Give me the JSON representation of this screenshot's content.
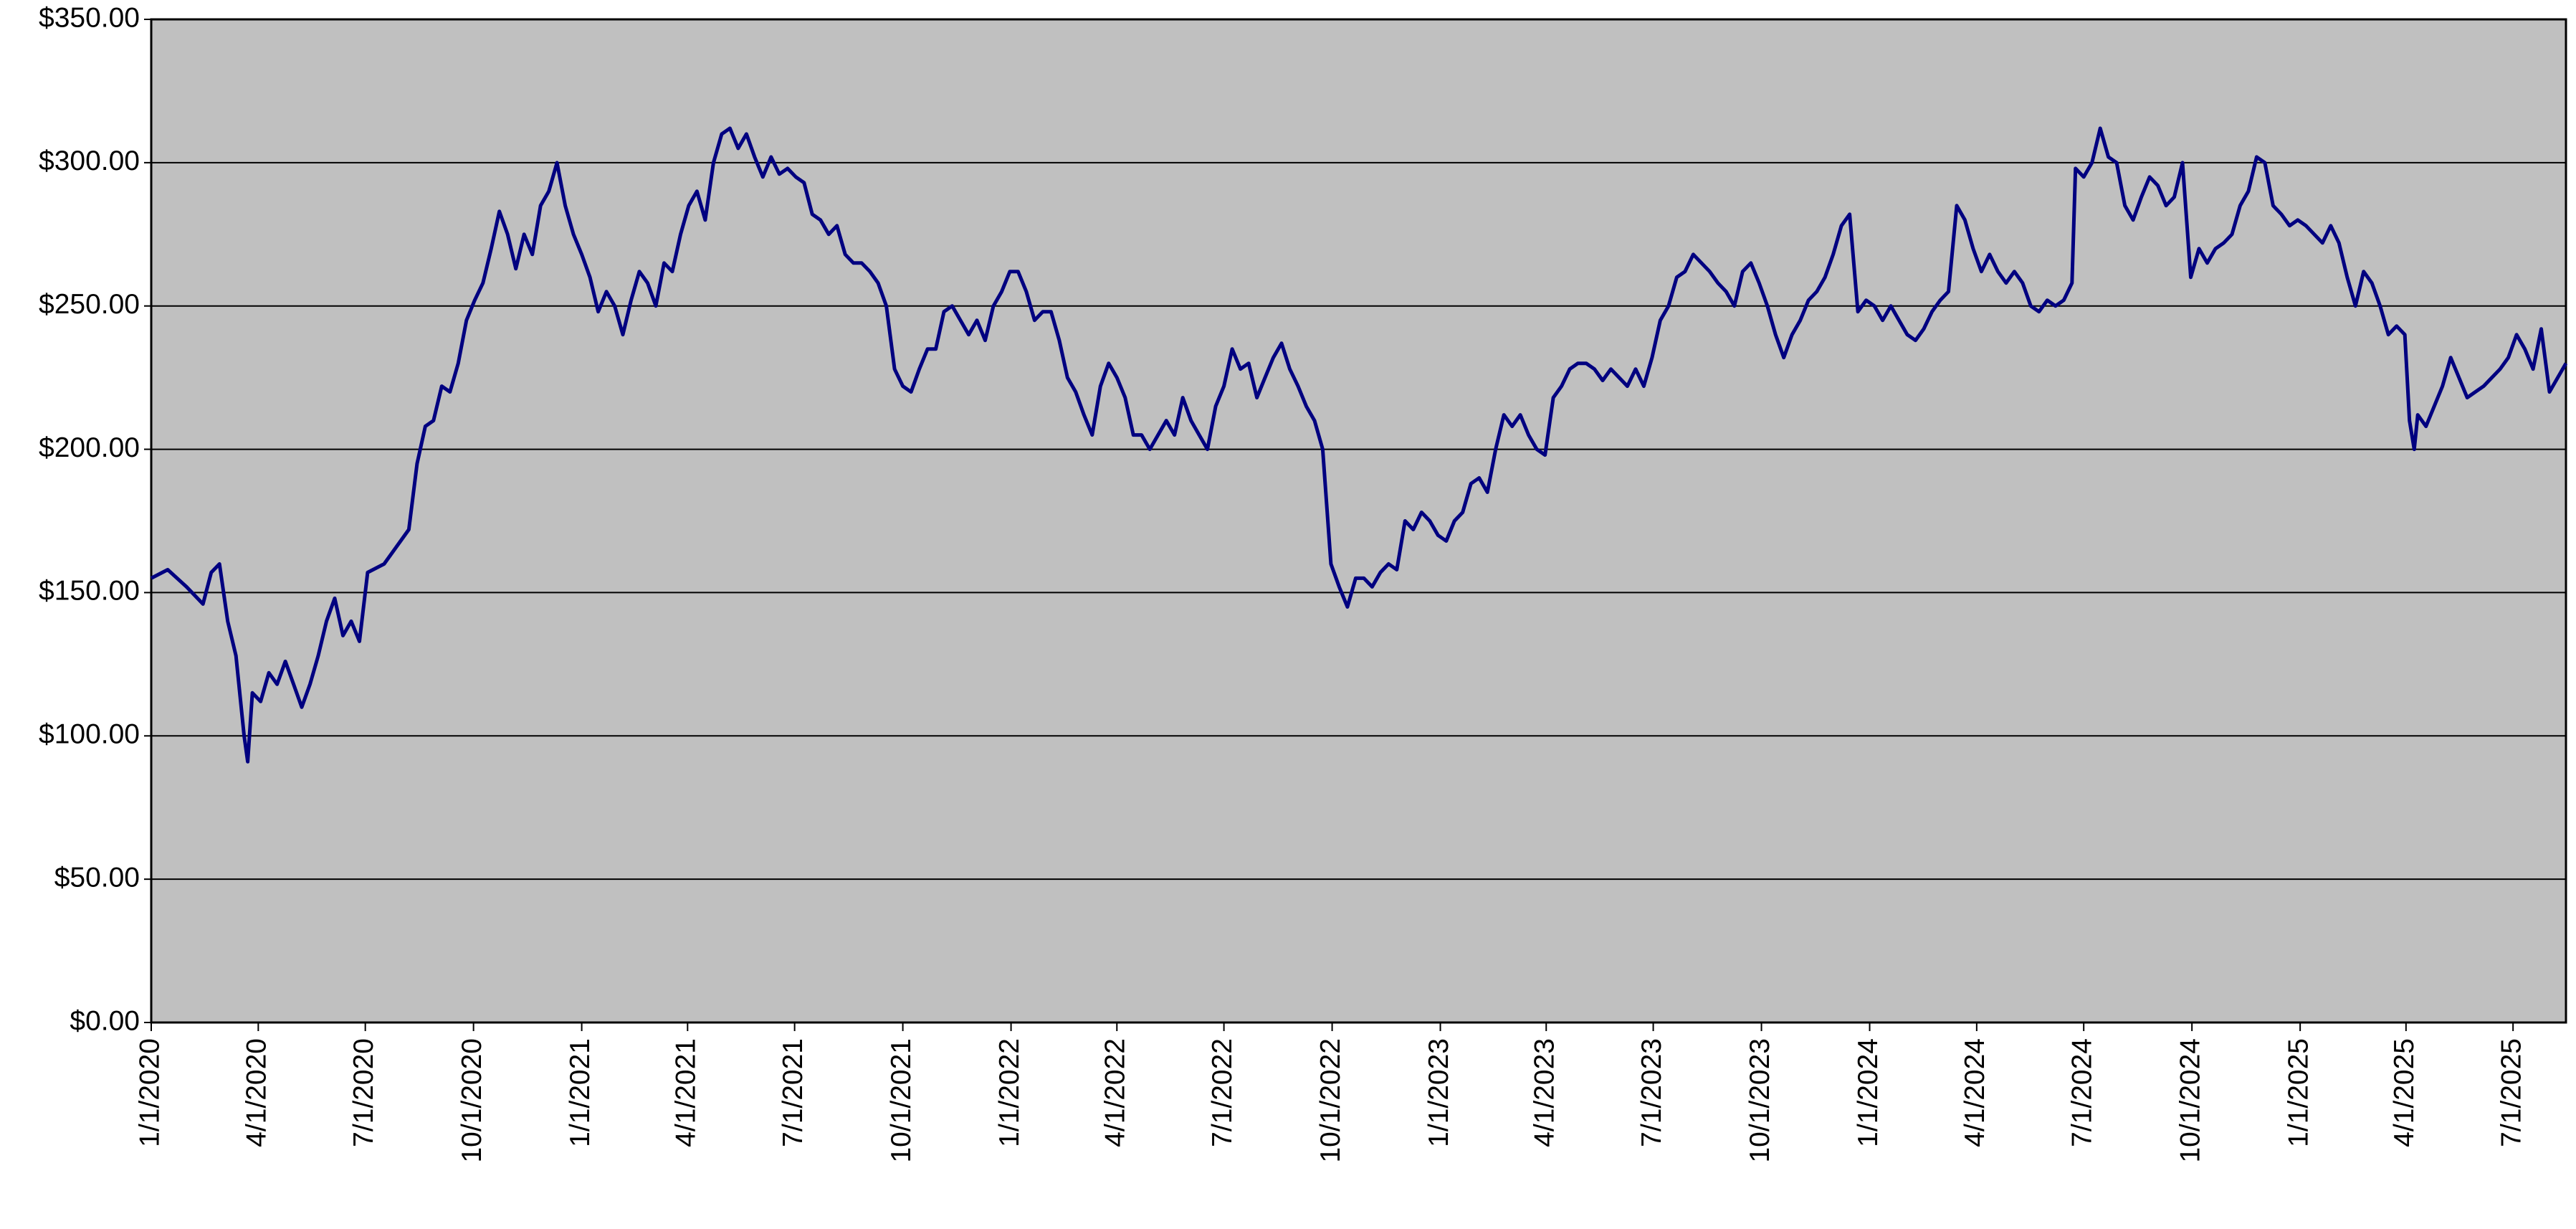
{
  "chart_data": {
    "type": "line",
    "color": "#000080",
    "background": "#c0c0c0",
    "grid": true,
    "ylim": [
      0,
      350
    ],
    "yticks": [
      {
        "value": 0,
        "label": "$0.00"
      },
      {
        "value": 50,
        "label": "$50.00"
      },
      {
        "value": 100,
        "label": "$100.00"
      },
      {
        "value": 150,
        "label": "$150.00"
      },
      {
        "value": 200,
        "label": "$200.00"
      },
      {
        "value": 250,
        "label": "$250.00"
      },
      {
        "value": 300,
        "label": "$300.00"
      },
      {
        "value": 350,
        "label": "$350.00"
      }
    ],
    "xlim": [
      "1/1/2020",
      "8/15/2025"
    ],
    "xticks": [
      "1/1/2020",
      "4/1/2020",
      "7/1/2020",
      "10/1/2020",
      "1/1/2021",
      "4/1/2021",
      "7/1/2021",
      "10/1/2021",
      "1/1/2022",
      "4/1/2022",
      "7/1/2022",
      "10/1/2022",
      "1/1/2023",
      "4/1/2023",
      "7/1/2023",
      "10/1/2023",
      "1/1/2024",
      "4/1/2024",
      "7/1/2024",
      "10/1/2024",
      "1/1/2025",
      "4/1/2025",
      "7/1/2025"
    ],
    "x": [
      "1/1/2020",
      "1/15/2020",
      "1/31/2020",
      "2/14/2020",
      "2/21/2020",
      "2/28/2020",
      "3/6/2020",
      "3/13/2020",
      "3/20/2020",
      "3/23/2020",
      "3/27/2020",
      "4/3/2020",
      "4/10/2020",
      "4/17/2020",
      "4/24/2020",
      "5/1/2020",
      "5/8/2020",
      "5/15/2020",
      "5/22/2020",
      "5/29/2020",
      "6/5/2020",
      "6/12/2020",
      "6/19/2020",
      "6/26/2020",
      "7/3/2020",
      "7/17/2020",
      "7/31/2020",
      "8/7/2020",
      "8/14/2020",
      "8/21/2020",
      "8/28/2020",
      "9/4/2020",
      "9/11/2020",
      "9/18/2020",
      "9/25/2020",
      "10/2/2020",
      "10/9/2020",
      "10/16/2020",
      "10/23/2020",
      "10/30/2020",
      "11/6/2020",
      "11/13/2020",
      "11/20/2020",
      "11/27/2020",
      "12/4/2020",
      "12/11/2020",
      "12/18/2020",
      "12/25/2020",
      "1/1/2021",
      "1/8/2021",
      "1/15/2021",
      "1/22/2021",
      "1/29/2021",
      "2/5/2021",
      "2/12/2021",
      "2/19/2021",
      "2/26/2021",
      "3/5/2021",
      "3/12/2021",
      "3/19/2021",
      "3/26/2021",
      "4/2/2021",
      "4/9/2021",
      "4/16/2021",
      "4/23/2021",
      "4/30/2021",
      "5/7/2021",
      "5/14/2021",
      "5/21/2021",
      "5/28/2021",
      "6/4/2021",
      "6/11/2021",
      "6/18/2021",
      "6/25/2021",
      "7/2/2021",
      "7/9/2021",
      "7/16/2021",
      "7/23/2021",
      "7/30/2021",
      "8/6/2021",
      "8/13/2021",
      "8/20/2021",
      "8/27/2021",
      "9/3/2021",
      "9/10/2021",
      "9/17/2021",
      "9/24/2021",
      "10/1/2021",
      "10/8/2021",
      "10/15/2021",
      "10/22/2021",
      "10/29/2021",
      "11/5/2021",
      "11/12/2021",
      "11/19/2021",
      "11/26/2021",
      "12/3/2021",
      "12/10/2021",
      "12/17/2021",
      "12/24/2021",
      "12/31/2021",
      "1/7/2022",
      "1/14/2022",
      "1/21/2022",
      "1/28/2022",
      "2/4/2022",
      "2/11/2022",
      "2/18/2022",
      "2/25/2022",
      "3/4/2022",
      "3/11/2022",
      "3/18/2022",
      "3/25/2022",
      "4/1/2022",
      "4/8/2022",
      "4/15/2022",
      "4/22/2022",
      "4/29/2022",
      "5/6/2022",
      "5/13/2022",
      "5/20/2022",
      "5/27/2022",
      "6/3/2022",
      "6/10/2022",
      "6/17/2022",
      "6/24/2022",
      "7/1/2022",
      "7/8/2022",
      "7/15/2022",
      "7/22/2022",
      "7/29/2022",
      "8/5/2022",
      "8/12/2022",
      "8/19/2022",
      "8/26/2022",
      "9/2/2022",
      "9/9/2022",
      "9/16/2022",
      "9/23/2022",
      "9/30/2022",
      "10/7/2022",
      "10/14/2022",
      "10/21/2022",
      "10/28/2022",
      "11/4/2022",
      "11/11/2022",
      "11/18/2022",
      "11/25/2022",
      "12/2/2022",
      "12/9/2022",
      "12/16/2022",
      "12/23/2022",
      "12/30/2022",
      "1/6/2023",
      "1/13/2023",
      "1/20/2023",
      "1/27/2023",
      "2/3/2023",
      "2/10/2023",
      "2/17/2023",
      "2/24/2023",
      "3/3/2023",
      "3/10/2023",
      "3/17/2023",
      "3/24/2023",
      "3/31/2023",
      "4/7/2023",
      "4/14/2023",
      "4/21/2023",
      "4/28/2023",
      "5/5/2023",
      "5/12/2023",
      "5/19/2023",
      "5/26/2023",
      "6/2/2023",
      "6/9/2023",
      "6/16/2023",
      "6/23/2023",
      "6/30/2023",
      "7/7/2023",
      "7/14/2023",
      "7/21/2023",
      "7/28/2023",
      "8/4/2023",
      "8/11/2023",
      "8/18/2023",
      "8/25/2023",
      "9/1/2023",
      "9/8/2023",
      "9/15/2023",
      "9/22/2023",
      "9/29/2023",
      "10/6/2023",
      "10/13/2023",
      "10/20/2023",
      "10/27/2023",
      "11/3/2023",
      "11/10/2023",
      "11/17/2023",
      "11/24/2023",
      "12/1/2023",
      "12/8/2023",
      "12/15/2023",
      "12/22/2023",
      "12/29/2023",
      "1/5/2024",
      "1/12/2024",
      "1/19/2024",
      "1/26/2024",
      "2/2/2024",
      "2/9/2024",
      "2/16/2024",
      "2/23/2024",
      "3/1/2024",
      "3/8/2024",
      "3/15/2024",
      "3/22/2024",
      "3/29/2024",
      "4/5/2024",
      "4/12/2024",
      "4/19/2024",
      "4/26/2024",
      "5/3/2024",
      "5/10/2024",
      "5/17/2024",
      "5/24/2024",
      "5/31/2024",
      "6/7/2024",
      "6/14/2024",
      "6/21/2024",
      "6/24/2024",
      "7/1/2024",
      "7/8/2024",
      "7/15/2024",
      "7/22/2024",
      "7/29/2024",
      "8/5/2024",
      "8/12/2024",
      "8/19/2024",
      "8/26/2024",
      "9/2/2024",
      "9/9/2024",
      "9/16/2024",
      "9/23/2024",
      "9/30/2024",
      "10/7/2024",
      "10/14/2024",
      "10/21/2024",
      "10/28/2024",
      "11/4/2024",
      "11/11/2024",
      "11/18/2024",
      "11/25/2024",
      "12/2/2024",
      "12/9/2024",
      "12/16/2024",
      "12/23/2024",
      "12/30/2024",
      "1/6/2025",
      "1/13/2025",
      "1/20/2025",
      "1/27/2025",
      "2/3/2025",
      "2/10/2025",
      "2/17/2025",
      "2/24/2025",
      "3/3/2025",
      "3/10/2025",
      "3/17/2025",
      "3/24/2025",
      "3/31/2025",
      "4/4/2025",
      "4/8/2025",
      "4/11/2025",
      "4/18/2025",
      "4/25/2025",
      "5/2/2025",
      "5/9/2025",
      "5/16/2025",
      "5/23/2025",
      "5/30/2025",
      "6/6/2025",
      "6/13/2025",
      "6/20/2025",
      "6/27/2025",
      "7/4/2025",
      "7/11/2025",
      "7/18/2025",
      "7/25/2025",
      "8/1/2025",
      "8/8/2025",
      "8/15/2025"
    ],
    "values": [
      155,
      158,
      152,
      146,
      157,
      160,
      140,
      128,
      100,
      91,
      115,
      112,
      122,
      118,
      126,
      118,
      110,
      118,
      128,
      140,
      148,
      135,
      140,
      133,
      157,
      160,
      168,
      172,
      195,
      208,
      210,
      222,
      220,
      230,
      245,
      252,
      258,
      270,
      283,
      275,
      263,
      275,
      268,
      285,
      290,
      300,
      285,
      275,
      268,
      260,
      248,
      255,
      250,
      240,
      252,
      262,
      258,
      250,
      265,
      262,
      275,
      285,
      290,
      280,
      300,
      310,
      312,
      305,
      310,
      302,
      295,
      302,
      296,
      298,
      295,
      293,
      282,
      280,
      275,
      278,
      268,
      265,
      265,
      262,
      258,
      250,
      228,
      222,
      220,
      228,
      235,
      235,
      248,
      250,
      245,
      240,
      245,
      238,
      250,
      255,
      262,
      262,
      255,
      245,
      248,
      248,
      238,
      225,
      220,
      212,
      205,
      222,
      230,
      225,
      218,
      205,
      205,
      200,
      205,
      210,
      205,
      218,
      210,
      205,
      200,
      215,
      222,
      235,
      228,
      230,
      218,
      225,
      232,
      237,
      228,
      222,
      215,
      210,
      200,
      160,
      152,
      145,
      155,
      155,
      152,
      157,
      160,
      158,
      175,
      172,
      178,
      175,
      170,
      168,
      175,
      178,
      188,
      190,
      185,
      200,
      212,
      208,
      212,
      205,
      200,
      198,
      218,
      222,
      228,
      230,
      230,
      228,
      224,
      228,
      225,
      222,
      228,
      222,
      232,
      245,
      250,
      260,
      262,
      268,
      265,
      262,
      258,
      255,
      250,
      262,
      265,
      258,
      250,
      240,
      232,
      240,
      245,
      252,
      255,
      260,
      268,
      278,
      282,
      248,
      252,
      250,
      245,
      250,
      245,
      240,
      238,
      242,
      248,
      252,
      255,
      285,
      280,
      270,
      262,
      268,
      262,
      258,
      262,
      258,
      250,
      248,
      252,
      250,
      252,
      258,
      298,
      295,
      300,
      312,
      302,
      300,
      285,
      280,
      288,
      295,
      292,
      285,
      288,
      300,
      260,
      270,
      265,
      270,
      272,
      275,
      285,
      290,
      302,
      300,
      285,
      282,
      278,
      280,
      278,
      275,
      272,
      278,
      272,
      260,
      250,
      262,
      258,
      250,
      240,
      243,
      240,
      210,
      200,
      212,
      208,
      215,
      222,
      232,
      225,
      218,
      220,
      222,
      225,
      228,
      232,
      240,
      235,
      228,
      242,
      220,
      225,
      230
    ]
  }
}
